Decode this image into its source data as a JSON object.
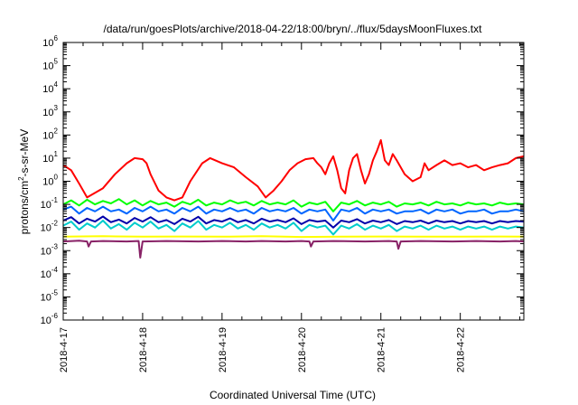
{
  "chart_data": {
    "type": "line",
    "title": "/data/run/goesPlots/archive/2018-04-22/18:00/bryn/../flux/5daysMoonFluxes.txt",
    "xlabel": "Coordinated Universal Time (UTC)",
    "ylabel": {
      "base": "protons/cm",
      "sup": "2",
      "rest": "-s-sr-MeV"
    },
    "xlim": [
      0,
      5.8
    ],
    "ylim_exp": [
      -6,
      6
    ],
    "yscale": "log",
    "grid": false,
    "legend": "none",
    "x_ticks": [
      {
        "pos": 0,
        "label": "2018-4-17"
      },
      {
        "pos": 1,
        "label": "2018-4-18"
      },
      {
        "pos": 2,
        "label": "2018-4-19"
      },
      {
        "pos": 3,
        "label": "2018-4-20"
      },
      {
        "pos": 4,
        "label": "2018-4-21"
      },
      {
        "pos": 5,
        "label": "2018-4-22"
      }
    ],
    "y_ticks": [
      {
        "exp": -6,
        "base": "10",
        "sup": "-6"
      },
      {
        "exp": -5,
        "base": "10",
        "sup": "-5"
      },
      {
        "exp": -4,
        "base": "10",
        "sup": "-4"
      },
      {
        "exp": -3,
        "base": "10",
        "sup": "-3"
      },
      {
        "exp": -2,
        "base": "10",
        "sup": "-2"
      },
      {
        "exp": -1,
        "base": "10",
        "sup": "-1"
      },
      {
        "exp": 0,
        "base": "10",
        "sup": "0"
      },
      {
        "exp": 1,
        "base": "10",
        "sup": "1"
      },
      {
        "exp": 2,
        "base": "10",
        "sup": "2"
      },
      {
        "exp": 3,
        "base": "10",
        "sup": "3"
      },
      {
        "exp": 4,
        "base": "10",
        "sup": "4"
      },
      {
        "exp": 5,
        "base": "10",
        "sup": "5"
      },
      {
        "exp": 6,
        "base": "10",
        "sup": "6"
      }
    ],
    "series": [
      {
        "color": "#ff0000",
        "width": 2,
        "x": [
          0.0,
          0.1,
          0.2,
          0.3,
          0.5,
          0.65,
          0.8,
          0.9,
          1.0,
          1.05,
          1.1,
          1.2,
          1.3,
          1.4,
          1.5,
          1.6,
          1.75,
          1.85,
          2.0,
          2.15,
          2.3,
          2.45,
          2.55,
          2.65,
          2.75,
          2.85,
          2.95,
          3.05,
          3.15,
          3.2,
          3.25,
          3.3,
          3.35,
          3.4,
          3.45,
          3.5,
          3.55,
          3.6,
          3.65,
          3.7,
          3.75,
          3.8,
          3.85,
          3.9,
          3.95,
          4.0,
          4.05,
          4.1,
          4.15,
          4.2,
          4.3,
          4.4,
          4.5,
          4.55,
          4.6,
          4.7,
          4.8,
          4.9,
          5.0,
          5.1,
          5.2,
          5.3,
          5.4,
          5.5,
          5.6,
          5.7,
          5.8
        ],
        "y": [
          5,
          3,
          0.8,
          0.2,
          0.5,
          2,
          6,
          10,
          9,
          6,
          2,
          0.4,
          0.2,
          0.15,
          0.2,
          1,
          6,
          10,
          6,
          4,
          1.5,
          0.6,
          0.2,
          0.4,
          1,
          3,
          6,
          9,
          10,
          6,
          4,
          2,
          6,
          12,
          3,
          0.5,
          0.3,
          3,
          10,
          15,
          3,
          0.8,
          2,
          8,
          20,
          60,
          8,
          5,
          15,
          8,
          2,
          1,
          1.5,
          6,
          3,
          5,
          8,
          5,
          6,
          4,
          5,
          3,
          4,
          5,
          6,
          10,
          12
        ]
      },
      {
        "color": "#00ff00",
        "width": 2,
        "x": [
          0.0,
          0.1,
          0.2,
          0.3,
          0.4,
          0.5,
          0.6,
          0.7,
          0.8,
          0.9,
          1.0,
          1.1,
          1.2,
          1.3,
          1.4,
          1.5,
          1.6,
          1.7,
          1.8,
          1.9,
          2.0,
          2.1,
          2.2,
          2.3,
          2.4,
          2.5,
          2.6,
          2.7,
          2.8,
          2.9,
          3.0,
          3.1,
          3.2,
          3.3,
          3.4,
          3.5,
          3.6,
          3.7,
          3.8,
          3.9,
          4.0,
          4.1,
          4.2,
          4.3,
          4.4,
          4.5,
          4.6,
          4.7,
          4.8,
          4.9,
          5.0,
          5.1,
          5.2,
          5.3,
          5.4,
          5.5,
          5.6,
          5.7,
          5.8
        ],
        "y": [
          0.1,
          0.15,
          0.09,
          0.16,
          0.1,
          0.14,
          0.11,
          0.17,
          0.1,
          0.15,
          0.09,
          0.14,
          0.1,
          0.12,
          0.08,
          0.13,
          0.1,
          0.16,
          0.09,
          0.12,
          0.1,
          0.15,
          0.11,
          0.13,
          0.09,
          0.14,
          0.1,
          0.12,
          0.1,
          0.15,
          0.08,
          0.12,
          0.1,
          0.13,
          0.05,
          0.12,
          0.1,
          0.14,
          0.09,
          0.12,
          0.1,
          0.13,
          0.08,
          0.11,
          0.1,
          0.12,
          0.09,
          0.13,
          0.1,
          0.11,
          0.09,
          0.12,
          0.1,
          0.11,
          0.09,
          0.12,
          0.1,
          0.11,
          0.1
        ]
      },
      {
        "color": "#0066ff",
        "width": 2,
        "x": [
          0.0,
          0.1,
          0.2,
          0.3,
          0.4,
          0.5,
          0.6,
          0.7,
          0.8,
          0.9,
          1.0,
          1.1,
          1.2,
          1.3,
          1.4,
          1.5,
          1.6,
          1.7,
          1.8,
          1.9,
          2.0,
          2.1,
          2.2,
          2.3,
          2.4,
          2.5,
          2.6,
          2.7,
          2.8,
          2.9,
          3.0,
          3.1,
          3.2,
          3.3,
          3.4,
          3.5,
          3.6,
          3.7,
          3.8,
          3.9,
          4.0,
          4.1,
          4.2,
          4.3,
          4.4,
          4.5,
          4.6,
          4.7,
          4.8,
          4.9,
          5.0,
          5.1,
          5.2,
          5.3,
          5.4,
          5.5,
          5.6,
          5.7,
          5.8
        ],
        "y": [
          0.06,
          0.08,
          0.04,
          0.07,
          0.05,
          0.08,
          0.05,
          0.06,
          0.04,
          0.07,
          0.05,
          0.08,
          0.05,
          0.06,
          0.04,
          0.07,
          0.05,
          0.08,
          0.04,
          0.06,
          0.05,
          0.07,
          0.05,
          0.06,
          0.04,
          0.07,
          0.05,
          0.06,
          0.05,
          0.07,
          0.04,
          0.06,
          0.05,
          0.06,
          0.02,
          0.06,
          0.05,
          0.07,
          0.04,
          0.06,
          0.05,
          0.06,
          0.04,
          0.05,
          0.05,
          0.06,
          0.04,
          0.06,
          0.05,
          0.06,
          0.04,
          0.05,
          0.05,
          0.06,
          0.04,
          0.05,
          0.05,
          0.06,
          0.05
        ]
      },
      {
        "color": "#00cccc",
        "width": 2,
        "x": [
          0.0,
          0.1,
          0.2,
          0.3,
          0.4,
          0.5,
          0.6,
          0.7,
          0.8,
          0.9,
          1.0,
          1.1,
          1.2,
          1.3,
          1.4,
          1.5,
          1.6,
          1.7,
          1.8,
          1.9,
          2.0,
          2.1,
          2.2,
          2.3,
          2.4,
          2.5,
          2.6,
          2.7,
          2.8,
          2.9,
          3.0,
          3.1,
          3.2,
          3.3,
          3.4,
          3.5,
          3.6,
          3.7,
          3.8,
          3.9,
          4.0,
          4.1,
          4.2,
          4.3,
          4.4,
          4.5,
          4.6,
          4.7,
          4.8,
          4.9,
          5.0,
          5.1,
          5.2,
          5.3,
          5.4,
          5.5,
          5.6,
          5.7,
          5.8
        ],
        "y": [
          0.012,
          0.018,
          0.008,
          0.015,
          0.01,
          0.02,
          0.009,
          0.014,
          0.008,
          0.016,
          0.01,
          0.018,
          0.009,
          0.013,
          0.007,
          0.015,
          0.01,
          0.019,
          0.008,
          0.013,
          0.01,
          0.016,
          0.009,
          0.013,
          0.008,
          0.015,
          0.01,
          0.013,
          0.009,
          0.016,
          0.007,
          0.013,
          0.01,
          0.012,
          0.005,
          0.012,
          0.009,
          0.014,
          0.008,
          0.012,
          0.009,
          0.013,
          0.007,
          0.011,
          0.009,
          0.012,
          0.008,
          0.012,
          0.009,
          0.011,
          0.008,
          0.011,
          0.009,
          0.011,
          0.008,
          0.011,
          0.009,
          0.011,
          0.01
        ]
      },
      {
        "color": "#0000aa",
        "width": 2,
        "x": [
          0.0,
          0.1,
          0.2,
          0.3,
          0.4,
          0.5,
          0.6,
          0.7,
          0.8,
          0.9,
          1.0,
          1.1,
          1.2,
          1.3,
          1.4,
          1.5,
          1.6,
          1.7,
          1.8,
          1.9,
          2.0,
          2.1,
          2.2,
          2.3,
          2.4,
          2.5,
          2.6,
          2.7,
          2.8,
          2.9,
          3.0,
          3.1,
          3.2,
          3.3,
          3.4,
          3.5,
          3.6,
          3.7,
          3.8,
          3.9,
          4.0,
          4.1,
          4.2,
          4.3,
          4.4,
          4.5,
          4.6,
          4.7,
          4.8,
          4.9,
          5.0,
          5.1,
          5.2,
          5.3,
          5.4,
          5.5,
          5.6,
          5.7,
          5.8
        ],
        "y": [
          0.02,
          0.028,
          0.015,
          0.024,
          0.018,
          0.03,
          0.017,
          0.022,
          0.015,
          0.026,
          0.018,
          0.028,
          0.017,
          0.021,
          0.014,
          0.024,
          0.018,
          0.029,
          0.015,
          0.021,
          0.018,
          0.025,
          0.017,
          0.021,
          0.015,
          0.024,
          0.018,
          0.021,
          0.017,
          0.025,
          0.014,
          0.021,
          0.018,
          0.02,
          0.01,
          0.02,
          0.017,
          0.023,
          0.015,
          0.02,
          0.017,
          0.021,
          0.014,
          0.019,
          0.017,
          0.02,
          0.015,
          0.02,
          0.017,
          0.019,
          0.015,
          0.019,
          0.017,
          0.019,
          0.015,
          0.019,
          0.017,
          0.019,
          0.018
        ]
      },
      {
        "color": "#ffff00",
        "width": 2,
        "x": [
          0.0,
          0.5,
          1.0,
          1.5,
          2.0,
          2.5,
          3.0,
          3.5,
          4.0,
          4.5,
          5.0,
          5.5,
          5.8
        ],
        "y": [
          0.004,
          0.0042,
          0.004,
          0.0041,
          0.004,
          0.0042,
          0.0039,
          0.004,
          0.0041,
          0.004,
          0.004,
          0.0041,
          0.004
        ]
      },
      {
        "color": "#882266",
        "width": 2,
        "x": [
          0.0,
          0.2,
          0.3,
          0.32,
          0.35,
          0.5,
          0.8,
          0.95,
          0.97,
          1.0,
          1.3,
          1.7,
          2.0,
          2.3,
          2.5,
          2.8,
          3.0,
          3.1,
          3.12,
          3.15,
          3.4,
          3.8,
          4.1,
          4.2,
          4.22,
          4.25,
          4.5,
          4.9,
          5.2,
          5.5,
          5.7,
          5.8
        ],
        "y": [
          0.0025,
          0.0027,
          0.0025,
          0.0015,
          0.0025,
          0.0026,
          0.0025,
          0.0026,
          0.0005,
          0.0025,
          0.0026,
          0.0025,
          0.0026,
          0.0025,
          0.0026,
          0.0025,
          0.0026,
          0.0025,
          0.0015,
          0.0025,
          0.0026,
          0.0025,
          0.0026,
          0.0025,
          0.0012,
          0.0025,
          0.0026,
          0.0025,
          0.0026,
          0.0025,
          0.0026,
          0.0025
        ]
      }
    ]
  }
}
